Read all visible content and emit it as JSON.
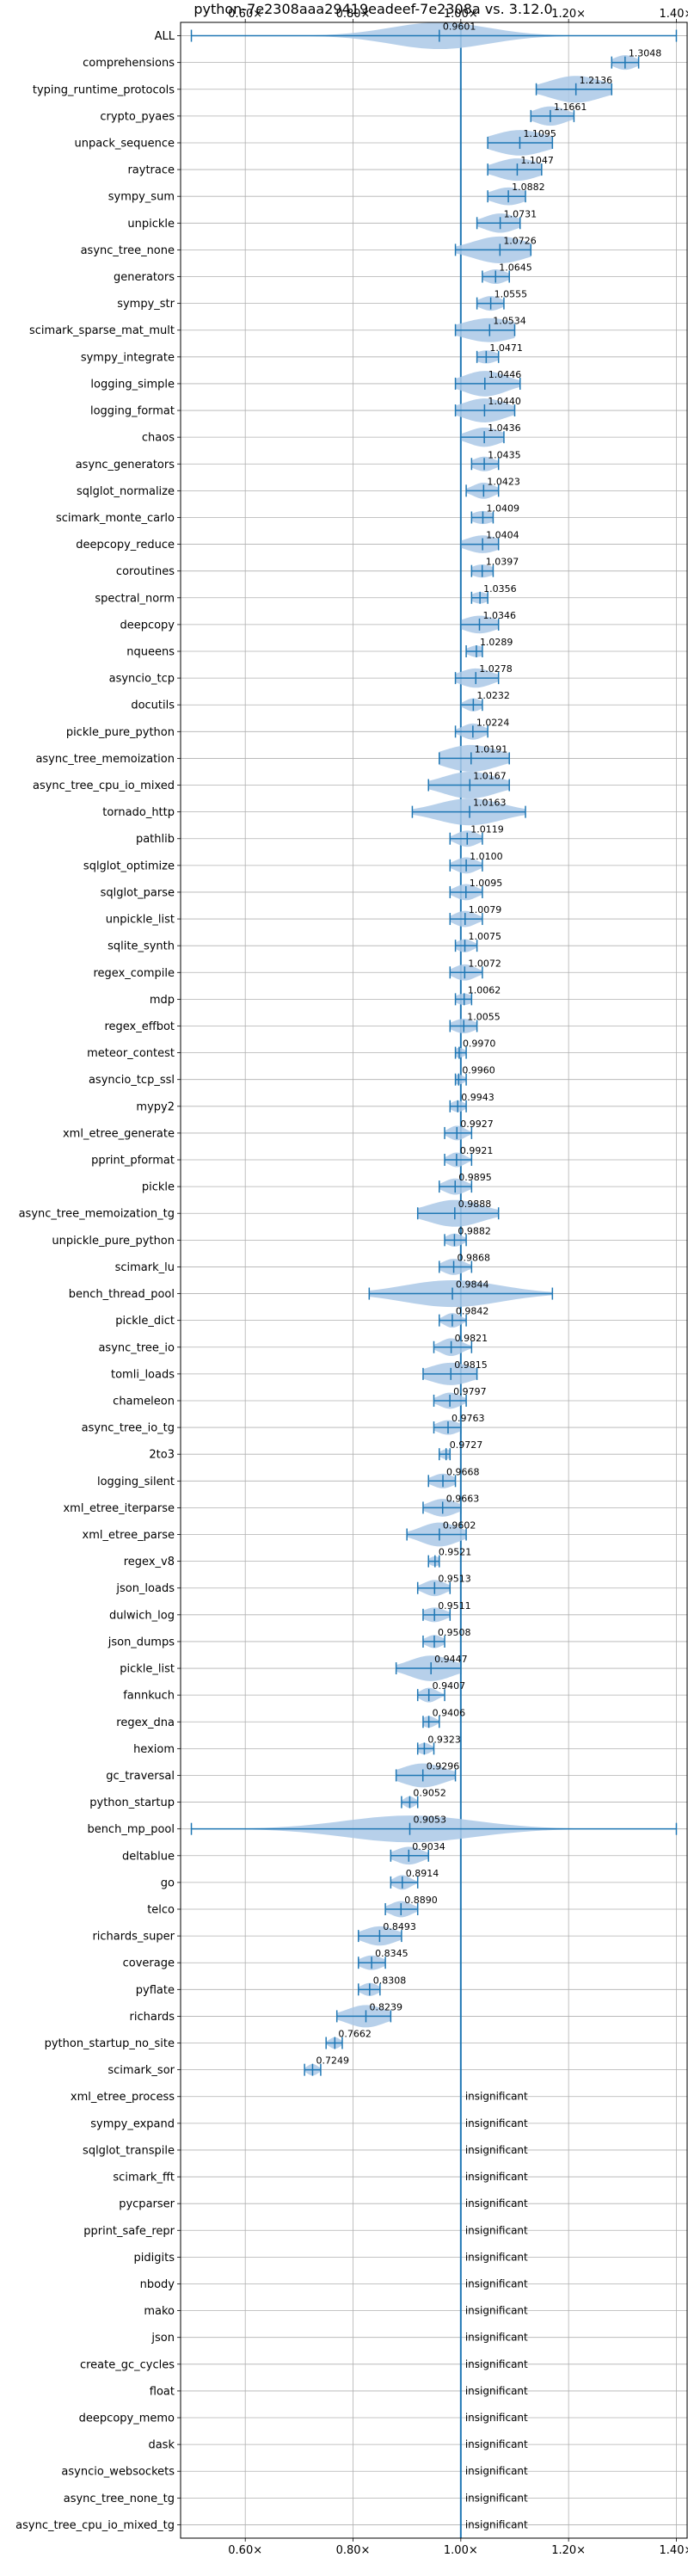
{
  "chart_data": {
    "type": "violin",
    "title": "python-7e2308aaa29419eadeef-7e2308a vs. 3.12.0",
    "xlabel": "",
    "ylabel": "",
    "xlim": [
      0.48,
      1.42
    ],
    "x_ticks": [
      0.6,
      0.8,
      1.0,
      1.2,
      1.4
    ],
    "x_tick_labels": [
      "0.60×",
      "0.80×",
      "1.00×",
      "1.20×",
      "1.40×"
    ],
    "grid": true,
    "reference_line": 1.0,
    "colors": {
      "violin": "#aac8e6",
      "line": "#1f77b4",
      "grid": "#b0b0b0",
      "text": "#000000"
    },
    "benchmarks": [
      {
        "name": "ALL",
        "label": "0.9601",
        "mean": 0.9601,
        "min": 0.5,
        "max": 1.4,
        "spread": 0.09
      },
      {
        "name": "comprehensions",
        "label": "1.3048",
        "mean": 1.3048,
        "min": 1.28,
        "max": 1.33,
        "spread": 0.02
      },
      {
        "name": "typing_runtime_protocols",
        "label": "1.2136",
        "mean": 1.2136,
        "min": 1.14,
        "max": 1.28,
        "spread": 0.05
      },
      {
        "name": "crypto_pyaes",
        "label": "1.1661",
        "mean": 1.1661,
        "min": 1.13,
        "max": 1.21,
        "spread": 0.03
      },
      {
        "name": "unpack_sequence",
        "label": "1.1095",
        "mean": 1.1095,
        "min": 1.05,
        "max": 1.17,
        "spread": 0.05
      },
      {
        "name": "raytrace",
        "label": "1.1047",
        "mean": 1.1047,
        "min": 1.05,
        "max": 1.15,
        "spread": 0.04
      },
      {
        "name": "sympy_sum",
        "label": "1.0882",
        "mean": 1.0882,
        "min": 1.05,
        "max": 1.12,
        "spread": 0.03
      },
      {
        "name": "unpickle",
        "label": "1.0731",
        "mean": 1.0731,
        "min": 1.03,
        "max": 1.11,
        "spread": 0.03
      },
      {
        "name": "async_tree_none",
        "label": "1.0726",
        "mean": 1.0726,
        "min": 0.99,
        "max": 1.13,
        "spread": 0.05
      },
      {
        "name": "generators",
        "label": "1.0645",
        "mean": 1.0645,
        "min": 1.04,
        "max": 1.09,
        "spread": 0.02
      },
      {
        "name": "sympy_str",
        "label": "1.0555",
        "mean": 1.0555,
        "min": 1.03,
        "max": 1.08,
        "spread": 0.02
      },
      {
        "name": "scimark_sparse_mat_mult",
        "label": "1.0534",
        "mean": 1.0534,
        "min": 0.99,
        "max": 1.1,
        "spread": 0.05
      },
      {
        "name": "sympy_integrate",
        "label": "1.0471",
        "mean": 1.0471,
        "min": 1.03,
        "max": 1.07,
        "spread": 0.02
      },
      {
        "name": "logging_simple",
        "label": "1.0446",
        "mean": 1.0446,
        "min": 0.99,
        "max": 1.11,
        "spread": 0.04
      },
      {
        "name": "logging_format",
        "label": "1.0440",
        "mean": 1.044,
        "min": 0.99,
        "max": 1.1,
        "spread": 0.04
      },
      {
        "name": "chaos",
        "label": "1.0436",
        "mean": 1.0436,
        "min": 1.0,
        "max": 1.08,
        "spread": 0.03
      },
      {
        "name": "async_generators",
        "label": "1.0435",
        "mean": 1.0435,
        "min": 1.02,
        "max": 1.07,
        "spread": 0.02
      },
      {
        "name": "sqlglot_normalize",
        "label": "1.0423",
        "mean": 1.0423,
        "min": 1.01,
        "max": 1.07,
        "spread": 0.02
      },
      {
        "name": "scimark_monte_carlo",
        "label": "1.0409",
        "mean": 1.0409,
        "min": 1.02,
        "max": 1.06,
        "spread": 0.02
      },
      {
        "name": "deepcopy_reduce",
        "label": "1.0404",
        "mean": 1.0404,
        "min": 1.0,
        "max": 1.07,
        "spread": 0.03
      },
      {
        "name": "coroutines",
        "label": "1.0397",
        "mean": 1.0397,
        "min": 1.02,
        "max": 1.06,
        "spread": 0.02
      },
      {
        "name": "spectral_norm",
        "label": "1.0356",
        "mean": 1.0356,
        "min": 1.02,
        "max": 1.05,
        "spread": 0.015
      },
      {
        "name": "deepcopy",
        "label": "1.0346",
        "mean": 1.0346,
        "min": 1.0,
        "max": 1.07,
        "spread": 0.03
      },
      {
        "name": "nqueens",
        "label": "1.0289",
        "mean": 1.0289,
        "min": 1.01,
        "max": 1.04,
        "spread": 0.015
      },
      {
        "name": "asyncio_tcp",
        "label": "1.0278",
        "mean": 1.0278,
        "min": 0.99,
        "max": 1.07,
        "spread": 0.03
      },
      {
        "name": "docutils",
        "label": "1.0232",
        "mean": 1.0232,
        "min": 1.0,
        "max": 1.04,
        "spread": 0.015
      },
      {
        "name": "pickle_pure_python",
        "label": "1.0224",
        "mean": 1.0224,
        "min": 0.99,
        "max": 1.05,
        "spread": 0.02
      },
      {
        "name": "async_tree_memoization",
        "label": "1.0191",
        "mean": 1.0191,
        "min": 0.96,
        "max": 1.09,
        "spread": 0.05
      },
      {
        "name": "async_tree_cpu_io_mixed",
        "label": "1.0167",
        "mean": 1.0167,
        "min": 0.94,
        "max": 1.09,
        "spread": 0.05
      },
      {
        "name": "tornado_http",
        "label": "1.0163",
        "mean": 1.0163,
        "min": 0.91,
        "max": 1.12,
        "spread": 0.06
      },
      {
        "name": "pathlib",
        "label": "1.0119",
        "mean": 1.0119,
        "min": 0.98,
        "max": 1.04,
        "spread": 0.02
      },
      {
        "name": "sqlglot_optimize",
        "label": "1.0100",
        "mean": 1.01,
        "min": 0.98,
        "max": 1.04,
        "spread": 0.02
      },
      {
        "name": "sqlglot_parse",
        "label": "1.0095",
        "mean": 1.0095,
        "min": 0.98,
        "max": 1.04,
        "spread": 0.02
      },
      {
        "name": "unpickle_list",
        "label": "1.0079",
        "mean": 1.0079,
        "min": 0.98,
        "max": 1.04,
        "spread": 0.02
      },
      {
        "name": "sqlite_synth",
        "label": "1.0075",
        "mean": 1.0075,
        "min": 0.99,
        "max": 1.03,
        "spread": 0.015
      },
      {
        "name": "regex_compile",
        "label": "1.0072",
        "mean": 1.0072,
        "min": 0.98,
        "max": 1.04,
        "spread": 0.02
      },
      {
        "name": "mdp",
        "label": "1.0062",
        "mean": 1.0062,
        "min": 0.99,
        "max": 1.02,
        "spread": 0.015
      },
      {
        "name": "regex_effbot",
        "label": "1.0055",
        "mean": 1.0055,
        "min": 0.98,
        "max": 1.03,
        "spread": 0.02
      },
      {
        "name": "meteor_contest",
        "label": "0.9970",
        "mean": 0.997,
        "min": 0.99,
        "max": 1.01,
        "spread": 0.01
      },
      {
        "name": "asyncio_tcp_ssl",
        "label": "0.9960",
        "mean": 0.996,
        "min": 0.99,
        "max": 1.01,
        "spread": 0.01
      },
      {
        "name": "mypy2",
        "label": "0.9943",
        "mean": 0.9943,
        "min": 0.98,
        "max": 1.01,
        "spread": 0.012
      },
      {
        "name": "xml_etree_generate",
        "label": "0.9927",
        "mean": 0.9927,
        "min": 0.97,
        "max": 1.02,
        "spread": 0.015
      },
      {
        "name": "pprint_pformat",
        "label": "0.9921",
        "mean": 0.9921,
        "min": 0.97,
        "max": 1.02,
        "spread": 0.015
      },
      {
        "name": "pickle",
        "label": "0.9895",
        "mean": 0.9895,
        "min": 0.96,
        "max": 1.02,
        "spread": 0.02
      },
      {
        "name": "async_tree_memoization_tg",
        "label": "0.9888",
        "mean": 0.9888,
        "min": 0.92,
        "max": 1.07,
        "spread": 0.05
      },
      {
        "name": "unpickle_pure_python",
        "label": "0.9882",
        "mean": 0.9882,
        "min": 0.97,
        "max": 1.01,
        "spread": 0.015
      },
      {
        "name": "scimark_lu",
        "label": "0.9868",
        "mean": 0.9868,
        "min": 0.96,
        "max": 1.02,
        "spread": 0.02
      },
      {
        "name": "bench_thread_pool",
        "label": "0.9844",
        "mean": 0.9844,
        "min": 0.83,
        "max": 1.17,
        "spread": 0.09
      },
      {
        "name": "pickle_dict",
        "label": "0.9842",
        "mean": 0.9842,
        "min": 0.96,
        "max": 1.01,
        "spread": 0.015
      },
      {
        "name": "async_tree_io",
        "label": "0.9821",
        "mean": 0.9821,
        "min": 0.95,
        "max": 1.02,
        "spread": 0.02
      },
      {
        "name": "tomli_loads",
        "label": "0.9815",
        "mean": 0.9815,
        "min": 0.93,
        "max": 1.03,
        "spread": 0.04
      },
      {
        "name": "chameleon",
        "label": "0.9797",
        "mean": 0.9797,
        "min": 0.95,
        "max": 1.01,
        "spread": 0.02
      },
      {
        "name": "async_tree_io_tg",
        "label": "0.9763",
        "mean": 0.9763,
        "min": 0.95,
        "max": 1.0,
        "spread": 0.02
      },
      {
        "name": "2to3",
        "label": "0.9727",
        "mean": 0.9727,
        "min": 0.96,
        "max": 0.98,
        "spread": 0.01
      },
      {
        "name": "logging_silent",
        "label": "0.9668",
        "mean": 0.9668,
        "min": 0.94,
        "max": 0.99,
        "spread": 0.02
      },
      {
        "name": "xml_etree_iterparse",
        "label": "0.9663",
        "mean": 0.9663,
        "min": 0.93,
        "max": 1.0,
        "spread": 0.025
      },
      {
        "name": "xml_etree_parse",
        "label": "0.9602",
        "mean": 0.9602,
        "min": 0.9,
        "max": 1.01,
        "spread": 0.035
      },
      {
        "name": "regex_v8",
        "label": "0.9521",
        "mean": 0.9521,
        "min": 0.94,
        "max": 0.96,
        "spread": 0.01
      },
      {
        "name": "json_loads",
        "label": "0.9513",
        "mean": 0.9513,
        "min": 0.92,
        "max": 0.98,
        "spread": 0.02
      },
      {
        "name": "dulwich_log",
        "label": "0.9511",
        "mean": 0.9511,
        "min": 0.93,
        "max": 0.98,
        "spread": 0.02
      },
      {
        "name": "json_dumps",
        "label": "0.9508",
        "mean": 0.9508,
        "min": 0.93,
        "max": 0.97,
        "spread": 0.015
      },
      {
        "name": "pickle_list",
        "label": "0.9447",
        "mean": 0.9447,
        "min": 0.88,
        "max": 1.0,
        "spread": 0.04
      },
      {
        "name": "fannkuch",
        "label": "0.9407",
        "mean": 0.9407,
        "min": 0.92,
        "max": 0.97,
        "spread": 0.015
      },
      {
        "name": "regex_dna",
        "label": "0.9406",
        "mean": 0.9406,
        "min": 0.93,
        "max": 0.96,
        "spread": 0.012
      },
      {
        "name": "hexiom",
        "label": "0.9323",
        "mean": 0.9323,
        "min": 0.92,
        "max": 0.95,
        "spread": 0.012
      },
      {
        "name": "gc_traversal",
        "label": "0.9296",
        "mean": 0.9296,
        "min": 0.88,
        "max": 0.99,
        "spread": 0.04
      },
      {
        "name": "python_startup",
        "label": "0.9052",
        "mean": 0.9052,
        "min": 0.89,
        "max": 0.92,
        "spread": 0.01
      },
      {
        "name": "bench_mp_pool",
        "label": "0.9053",
        "mean": 0.9053,
        "min": 0.5,
        "max": 1.4,
        "spread": 0.12
      },
      {
        "name": "deltablue",
        "label": "0.9034",
        "mean": 0.9034,
        "min": 0.87,
        "max": 0.94,
        "spread": 0.025
      },
      {
        "name": "go",
        "label": "0.8914",
        "mean": 0.8914,
        "min": 0.87,
        "max": 0.92,
        "spread": 0.015
      },
      {
        "name": "telco",
        "label": "0.8890",
        "mean": 0.889,
        "min": 0.86,
        "max": 0.92,
        "spread": 0.02
      },
      {
        "name": "richards_super",
        "label": "0.8493",
        "mean": 0.8493,
        "min": 0.81,
        "max": 0.89,
        "spread": 0.03
      },
      {
        "name": "coverage",
        "label": "0.8345",
        "mean": 0.8345,
        "min": 0.81,
        "max": 0.86,
        "spread": 0.02
      },
      {
        "name": "pyflate",
        "label": "0.8308",
        "mean": 0.8308,
        "min": 0.81,
        "max": 0.85,
        "spread": 0.015
      },
      {
        "name": "richards",
        "label": "0.8239",
        "mean": 0.8239,
        "min": 0.77,
        "max": 0.87,
        "spread": 0.035
      },
      {
        "name": "python_startup_no_site",
        "label": "0.7662",
        "mean": 0.7662,
        "min": 0.75,
        "max": 0.78,
        "spread": 0.01
      },
      {
        "name": "scimark_sor",
        "label": "0.7249",
        "mean": 0.7249,
        "min": 0.71,
        "max": 0.74,
        "spread": 0.01
      },
      {
        "name": "xml_etree_process",
        "label": "insignificant",
        "insignificant": true
      },
      {
        "name": "sympy_expand",
        "label": "insignificant",
        "insignificant": true
      },
      {
        "name": "sqlglot_transpile",
        "label": "insignificant",
        "insignificant": true
      },
      {
        "name": "scimark_fft",
        "label": "insignificant",
        "insignificant": true
      },
      {
        "name": "pycparser",
        "label": "insignificant",
        "insignificant": true
      },
      {
        "name": "pprint_safe_repr",
        "label": "insignificant",
        "insignificant": true
      },
      {
        "name": "pidigits",
        "label": "insignificant",
        "insignificant": true
      },
      {
        "name": "nbody",
        "label": "insignificant",
        "insignificant": true
      },
      {
        "name": "mako",
        "label": "insignificant",
        "insignificant": true
      },
      {
        "name": "json",
        "label": "insignificant",
        "insignificant": true
      },
      {
        "name": "create_gc_cycles",
        "label": "insignificant",
        "insignificant": true
      },
      {
        "name": "float",
        "label": "insignificant",
        "insignificant": true
      },
      {
        "name": "deepcopy_memo",
        "label": "insignificant",
        "insignificant": true
      },
      {
        "name": "dask",
        "label": "insignificant",
        "insignificant": true
      },
      {
        "name": "asyncio_websockets",
        "label": "insignificant",
        "insignificant": true
      },
      {
        "name": "async_tree_none_tg",
        "label": "insignificant",
        "insignificant": true
      },
      {
        "name": "async_tree_cpu_io_mixed_tg",
        "label": "insignificant",
        "insignificant": true
      }
    ]
  }
}
